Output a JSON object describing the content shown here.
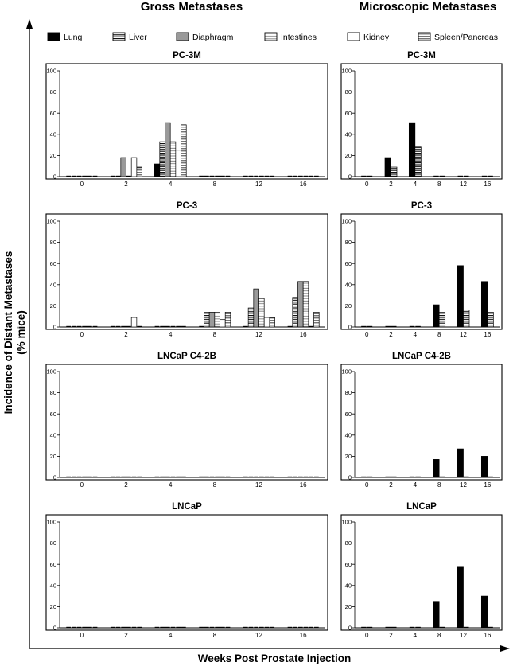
{
  "headers": {
    "left": "Gross Metastases",
    "right": "Microscopic Metastases"
  },
  "y_axis_label": [
    "Incidence of Distant Metastases",
    "(% mice)"
  ],
  "x_axis_label": "Weeks Post Prostate Injection",
  "colors": {
    "black": "#000000",
    "gray": "#9a9a9a",
    "hatch_fill": "#ffffff",
    "stroke": "#000000"
  },
  "legend": [
    {
      "name": "Lung",
      "style": "solid-black"
    },
    {
      "name": "Liver",
      "style": "hatch-dense"
    },
    {
      "name": "Diaphragm",
      "style": "solid-gray"
    },
    {
      "name": "Intestines",
      "style": "hatch-light"
    },
    {
      "name": "Kidney",
      "style": "white"
    },
    {
      "name": "Spleen/Pancreas",
      "style": "hatch-medium"
    }
  ],
  "chart_data": [
    {
      "type": "bar",
      "group": "Gross Metastases",
      "title": "PC-3M",
      "categories": [
        "0",
        "2",
        "4",
        "8",
        "12",
        "16"
      ],
      "ylim": [
        0,
        100
      ],
      "yticks": [
        0,
        20,
        40,
        60,
        80,
        100
      ],
      "xlabel": "Weeks Post Prostate Injection",
      "ylabel": "Incidence of Distant Metastases (% mice)",
      "series": [
        {
          "name": "Lung",
          "values": [
            0,
            0,
            12,
            0,
            0,
            0
          ]
        },
        {
          "name": "Liver",
          "values": [
            0,
            0,
            33,
            0,
            0,
            0
          ]
        },
        {
          "name": "Diaphragm",
          "values": [
            0,
            18,
            51,
            0,
            0,
            0
          ]
        },
        {
          "name": "Intestines",
          "values": [
            0,
            0,
            33,
            0,
            0,
            0
          ]
        },
        {
          "name": "Kidney",
          "values": [
            0,
            18,
            25,
            0,
            0,
            0
          ]
        },
        {
          "name": "Spleen/Pancreas",
          "values": [
            0,
            9,
            49,
            0,
            0,
            0
          ]
        }
      ]
    },
    {
      "type": "bar",
      "group": "Microscopic Metastases",
      "title": "PC-3M",
      "categories": [
        "0",
        "2",
        "4",
        "8",
        "12",
        "16"
      ],
      "ylim": [
        0,
        100
      ],
      "yticks": [
        0,
        20,
        40,
        60,
        80,
        100
      ],
      "xlabel": "Weeks Post Prostate Injection",
      "ylabel": "Incidence of Distant Metastases (% mice)",
      "series": [
        {
          "name": "Lung",
          "values": [
            0,
            18,
            51,
            0,
            0,
            0
          ]
        },
        {
          "name": "Liver",
          "values": [
            0,
            9,
            28,
            0,
            0,
            0
          ]
        }
      ]
    },
    {
      "type": "bar",
      "group": "Gross Metastases",
      "title": "PC-3",
      "categories": [
        "0",
        "2",
        "4",
        "8",
        "12",
        "16"
      ],
      "ylim": [
        0,
        100
      ],
      "yticks": [
        0,
        20,
        40,
        60,
        80,
        100
      ],
      "xlabel": "Weeks Post Prostate Injection",
      "ylabel": "Incidence of Distant Metastases (% mice)",
      "series": [
        {
          "name": "Lung",
          "values": [
            0,
            0,
            0,
            0,
            0,
            0
          ]
        },
        {
          "name": "Liver",
          "values": [
            0,
            0,
            0,
            14,
            18,
            28
          ]
        },
        {
          "name": "Diaphragm",
          "values": [
            0,
            0,
            0,
            14,
            36,
            43
          ]
        },
        {
          "name": "Intestines",
          "values": [
            0,
            0,
            0,
            14,
            27,
            43
          ]
        },
        {
          "name": "Kidney",
          "values": [
            0,
            9,
            0,
            7,
            9,
            0
          ]
        },
        {
          "name": "Spleen/Pancreas",
          "values": [
            0,
            0,
            0,
            14,
            9,
            14
          ]
        }
      ]
    },
    {
      "type": "bar",
      "group": "Microscopic Metastases",
      "title": "PC-3",
      "categories": [
        "0",
        "2",
        "4",
        "8",
        "12",
        "16"
      ],
      "ylim": [
        0,
        100
      ],
      "yticks": [
        0,
        20,
        40,
        60,
        80,
        100
      ],
      "xlabel": "Weeks Post Prostate Injection",
      "ylabel": "Incidence of Distant Metastases (% mice)",
      "series": [
        {
          "name": "Lung",
          "values": [
            0,
            0,
            0,
            21,
            58,
            43
          ]
        },
        {
          "name": "Liver",
          "values": [
            0,
            0,
            0,
            14,
            16,
            14
          ]
        }
      ]
    },
    {
      "type": "bar",
      "group": "Gross Metastases",
      "title": "LNCaP C4-2B",
      "categories": [
        "0",
        "2",
        "4",
        "8",
        "12",
        "16"
      ],
      "ylim": [
        0,
        100
      ],
      "yticks": [
        0,
        20,
        40,
        60,
        80,
        100
      ],
      "xlabel": "Weeks Post Prostate Injection",
      "ylabel": "Incidence of Distant Metastases (% mice)",
      "series": [
        {
          "name": "Lung",
          "values": [
            0,
            0,
            0,
            0,
            0,
            0
          ]
        },
        {
          "name": "Liver",
          "values": [
            0,
            0,
            0,
            0,
            0,
            0
          ]
        },
        {
          "name": "Diaphragm",
          "values": [
            0,
            0,
            0,
            0,
            0,
            0
          ]
        },
        {
          "name": "Intestines",
          "values": [
            0,
            0,
            0,
            0,
            0,
            0
          ]
        },
        {
          "name": "Kidney",
          "values": [
            0,
            0,
            0,
            0,
            0,
            0
          ]
        },
        {
          "name": "Spleen/Pancreas",
          "values": [
            0,
            0,
            0,
            0,
            0,
            0
          ]
        }
      ]
    },
    {
      "type": "bar",
      "group": "Microscopic Metastases",
      "title": "LNCaP C4-2B",
      "categories": [
        "0",
        "2",
        "4",
        "8",
        "12",
        "16"
      ],
      "ylim": [
        0,
        100
      ],
      "yticks": [
        0,
        20,
        40,
        60,
        80,
        100
      ],
      "xlabel": "Weeks Post Prostate Injection",
      "ylabel": "Incidence of Distant Metastases (% mice)",
      "series": [
        {
          "name": "Lung",
          "values": [
            0,
            0,
            0,
            17,
            27,
            20
          ]
        },
        {
          "name": "Liver",
          "values": [
            0,
            0,
            0,
            0,
            0,
            0
          ]
        }
      ]
    },
    {
      "type": "bar",
      "group": "Gross Metastases",
      "title": "LNCaP",
      "categories": [
        "0",
        "2",
        "4",
        "8",
        "12",
        "16"
      ],
      "ylim": [
        0,
        100
      ],
      "yticks": [
        0,
        20,
        40,
        60,
        80,
        100
      ],
      "xlabel": "Weeks Post Prostate Injection",
      "ylabel": "Incidence of Distant Metastases (% mice)",
      "series": [
        {
          "name": "Lung",
          "values": [
            0,
            0,
            0,
            0,
            0,
            0
          ]
        },
        {
          "name": "Liver",
          "values": [
            0,
            0,
            0,
            0,
            0,
            0
          ]
        },
        {
          "name": "Diaphragm",
          "values": [
            0,
            0,
            0,
            0,
            0,
            0
          ]
        },
        {
          "name": "Intestines",
          "values": [
            0,
            0,
            0,
            0,
            0,
            0
          ]
        },
        {
          "name": "Kidney",
          "values": [
            0,
            0,
            0,
            0,
            0,
            0
          ]
        },
        {
          "name": "Spleen/Pancreas",
          "values": [
            0,
            0,
            0,
            0,
            0,
            0
          ]
        }
      ]
    },
    {
      "type": "bar",
      "group": "Microscopic Metastases",
      "title": "LNCaP",
      "categories": [
        "0",
        "2",
        "4",
        "8",
        "12",
        "16"
      ],
      "ylim": [
        0,
        100
      ],
      "yticks": [
        0,
        20,
        40,
        60,
        80,
        100
      ],
      "xlabel": "Weeks Post Prostate Injection",
      "ylabel": "Incidence of Distant Metastases (% mice)",
      "series": [
        {
          "name": "Lung",
          "values": [
            0,
            0,
            0,
            25,
            58,
            30
          ]
        },
        {
          "name": "Liver",
          "values": [
            0,
            0,
            0,
            0,
            0,
            0
          ]
        }
      ]
    }
  ]
}
